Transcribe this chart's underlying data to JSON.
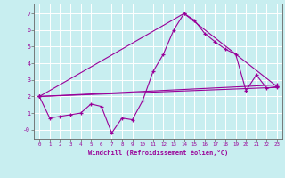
{
  "title": "",
  "xlabel": "Windchill (Refroidissement éolien,°C)",
  "bg_color": "#c8eef0",
  "grid_color": "#ffffff",
  "line_color": "#990099",
  "xlim": [
    -0.5,
    23.5
  ],
  "ylim": [
    -0.55,
    7.6
  ],
  "yticks": [
    0,
    1,
    2,
    3,
    4,
    5,
    6,
    7
  ],
  "ytick_labels": [
    "-0",
    "1",
    "2",
    "3",
    "4",
    "5",
    "6",
    "7"
  ],
  "xticks": [
    0,
    1,
    2,
    3,
    4,
    5,
    6,
    7,
    8,
    9,
    10,
    11,
    12,
    13,
    14,
    15,
    16,
    17,
    18,
    19,
    20,
    21,
    22,
    23
  ],
  "lines": [
    {
      "x": [
        0,
        1,
        2,
        3,
        4,
        5,
        6,
        7,
        8,
        9,
        10,
        11,
        12,
        13,
        14,
        15,
        16,
        17,
        18,
        19,
        20,
        21,
        22,
        23
      ],
      "y": [
        2.0,
        0.7,
        0.8,
        0.9,
        1.0,
        1.55,
        1.4,
        -0.2,
        0.7,
        0.6,
        1.75,
        3.5,
        4.55,
        6.0,
        7.0,
        6.6,
        5.8,
        5.3,
        4.85,
        4.55,
        2.35,
        3.3,
        2.5,
        2.6
      ]
    },
    {
      "x": [
        0,
        23
      ],
      "y": [
        2.0,
        2.55
      ]
    },
    {
      "x": [
        0,
        14,
        23
      ],
      "y": [
        2.0,
        7.0,
        2.6
      ]
    },
    {
      "x": [
        0,
        23
      ],
      "y": [
        2.0,
        2.7
      ]
    }
  ]
}
